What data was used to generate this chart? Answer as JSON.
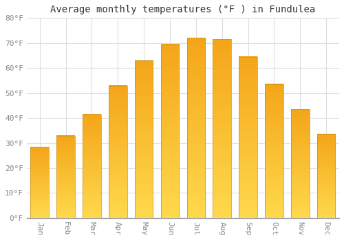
{
  "title": "Average monthly temperatures (°F ) in Fundulea",
  "months": [
    "Jan",
    "Feb",
    "Mar",
    "Apr",
    "May",
    "Jun",
    "Jul",
    "Aug",
    "Sep",
    "Oct",
    "Nov",
    "Dec"
  ],
  "values": [
    28.5,
    33.0,
    41.5,
    53.0,
    63.0,
    69.5,
    72.0,
    71.5,
    64.5,
    53.5,
    43.5,
    33.5
  ],
  "bar_color": "#F5A800",
  "bar_edge_color": "#B8860B",
  "ylim": [
    0,
    80
  ],
  "yticks": [
    0,
    10,
    20,
    30,
    40,
    50,
    60,
    70,
    80
  ],
  "ytick_labels": [
    "0°F",
    "10°F",
    "20°F",
    "30°F",
    "40°F",
    "50°F",
    "60°F",
    "70°F",
    "80°F"
  ],
  "background_color": "#FFFFFF",
  "grid_color": "#DDDDDD",
  "title_fontsize": 10,
  "tick_fontsize": 8,
  "font_family": "monospace",
  "tick_color": "#888888",
  "figsize": [
    5.0,
    3.5
  ],
  "dpi": 100
}
